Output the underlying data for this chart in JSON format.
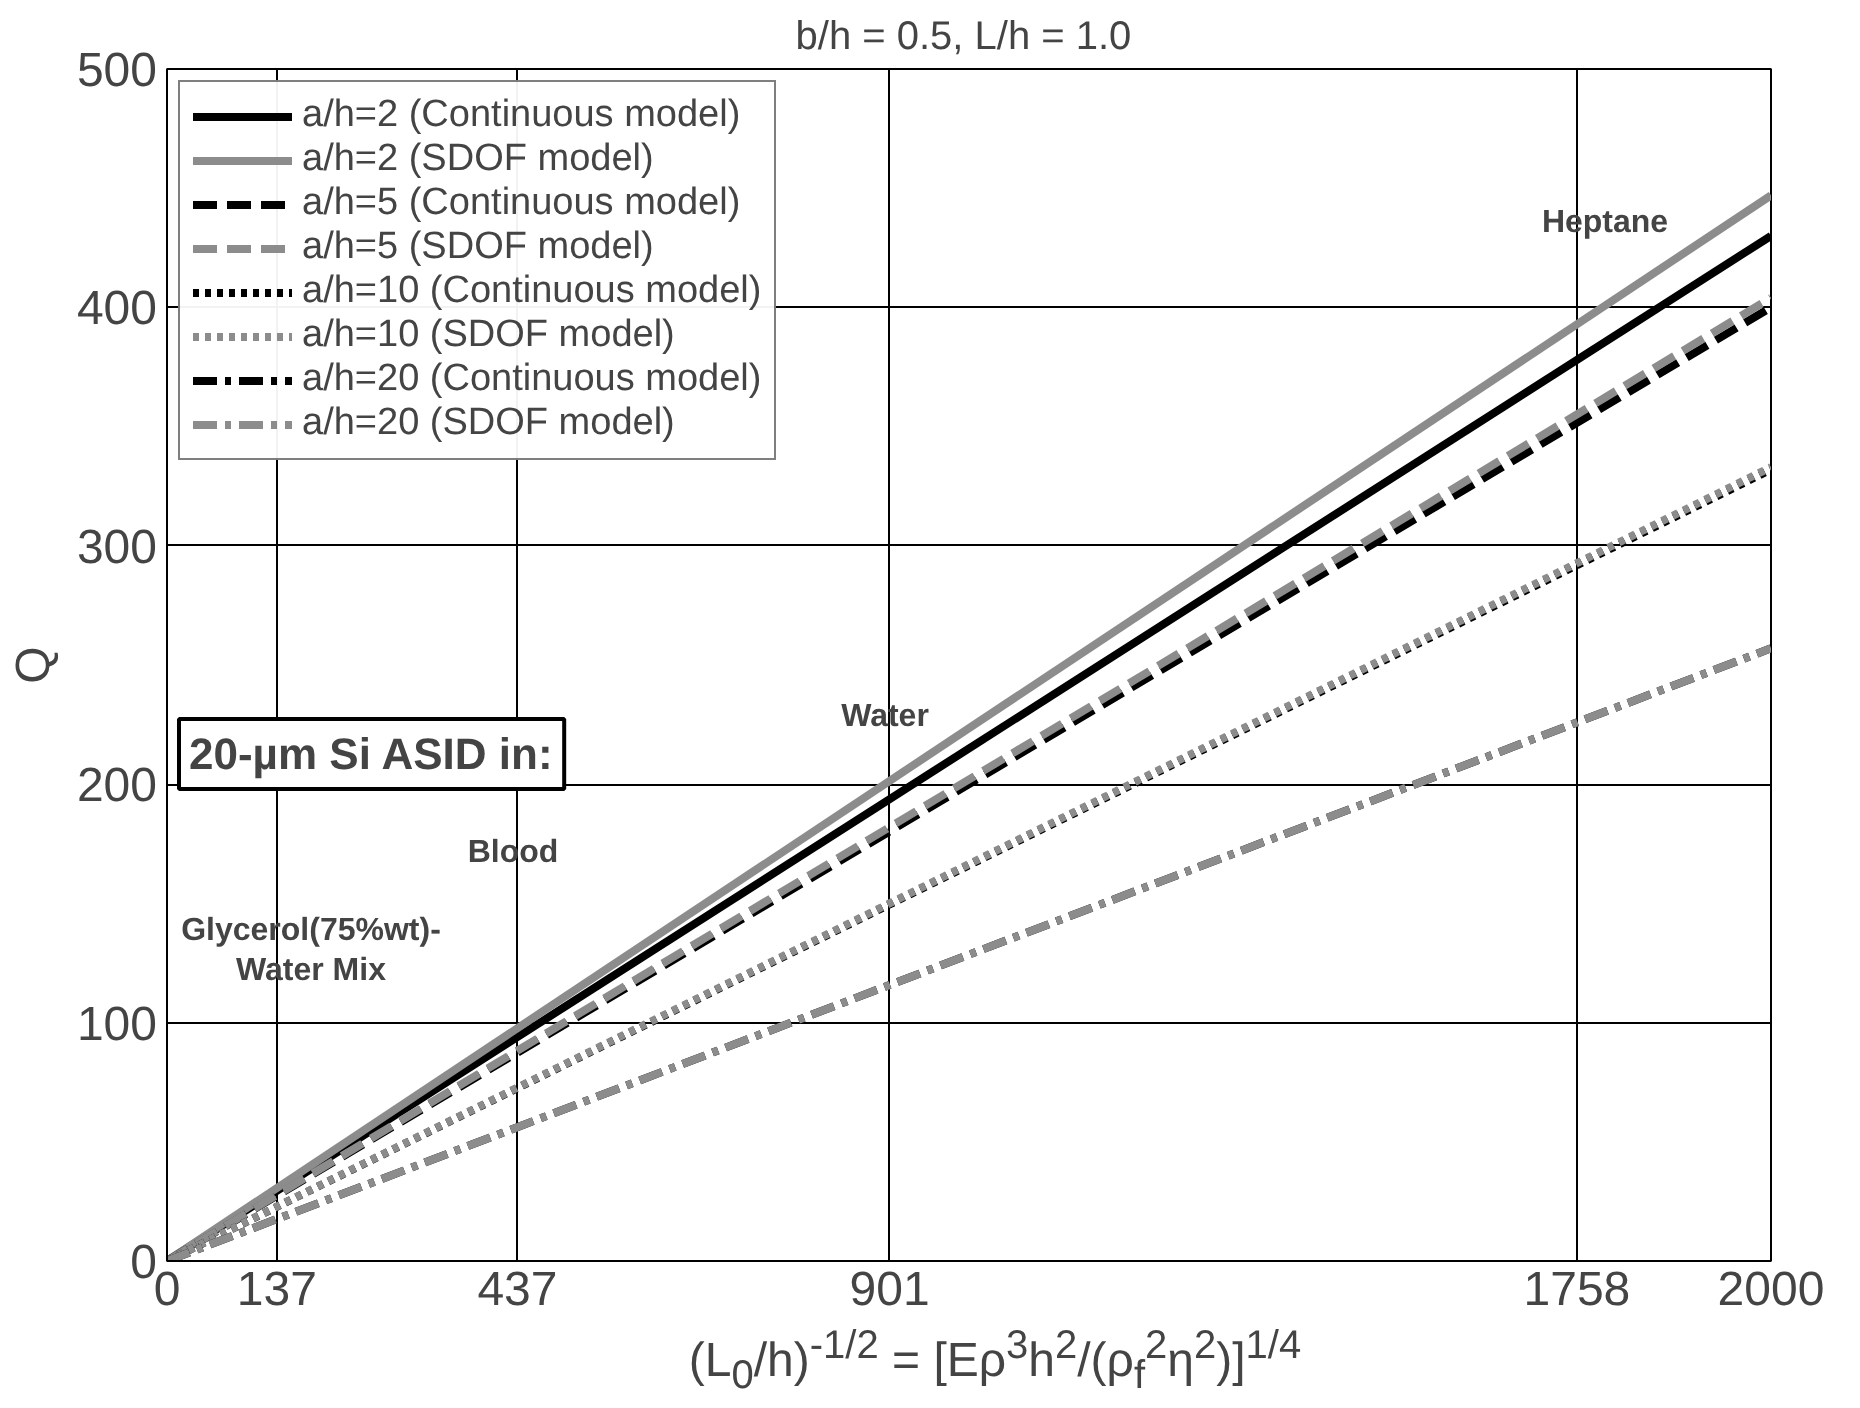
{
  "chart_data": {
    "type": "line",
    "title": "b/h = 0.5,  L/h = 1.0",
    "xlabel": "(L$_{0}$/h)$^{-1/2}$ = [Eρ$^{3}$h$^{2}$/(ρ$_{f}$$^{2}$η$^{2}$)]$^{1/4}$",
    "ylabel": "Q",
    "x": [
      0,
      2000
    ],
    "series": [
      {
        "name": "a/h=2 (Continuous model)",
        "color": "#000000",
        "line_style": "solid",
        "values": [
          0,
          430
        ]
      },
      {
        "name": "a/h=2 (SDOF model)",
        "color": "#8c8c8c",
        "line_style": "solid",
        "values": [
          0,
          447
        ]
      },
      {
        "name": "a/h=5 (Continuous model)",
        "color": "#000000",
        "line_style": "dashed",
        "values": [
          0,
          400
        ]
      },
      {
        "name": "a/h=5 (SDOF model)",
        "color": "#8c8c8c",
        "line_style": "dashed",
        "values": [
          0,
          404
        ]
      },
      {
        "name": "a/h=10 (Continuous model)",
        "color": "#000000",
        "line_style": "dotted",
        "values": [
          0,
          332
        ]
      },
      {
        "name": "a/h=10 (SDOF model)",
        "color": "#8c8c8c",
        "line_style": "dotted",
        "values": [
          0,
          333
        ]
      },
      {
        "name": "a/h=20 (Continuous model)",
        "color": "#000000",
        "line_style": "dashdot",
        "values": [
          0,
          257
        ]
      },
      {
        "name": "a/h=20 (SDOF model)",
        "color": "#8c8c8c",
        "line_style": "dashdot",
        "values": [
          0,
          257
        ]
      }
    ],
    "annotations": [
      "20-µm Si ASID in:",
      "Heptane",
      "Water",
      "Blood",
      "Glycerol(75%wt)-\nWater Mix"
    ],
    "xlim": [
      0,
      2000
    ],
    "ylim": [
      0,
      500
    ],
    "xticks": [
      0,
      137,
      437,
      901,
      1758,
      2000
    ],
    "yticks": [
      0,
      100,
      200,
      300,
      400,
      500
    ],
    "grid": true,
    "legend": "top left",
    "marker": "none"
  }
}
